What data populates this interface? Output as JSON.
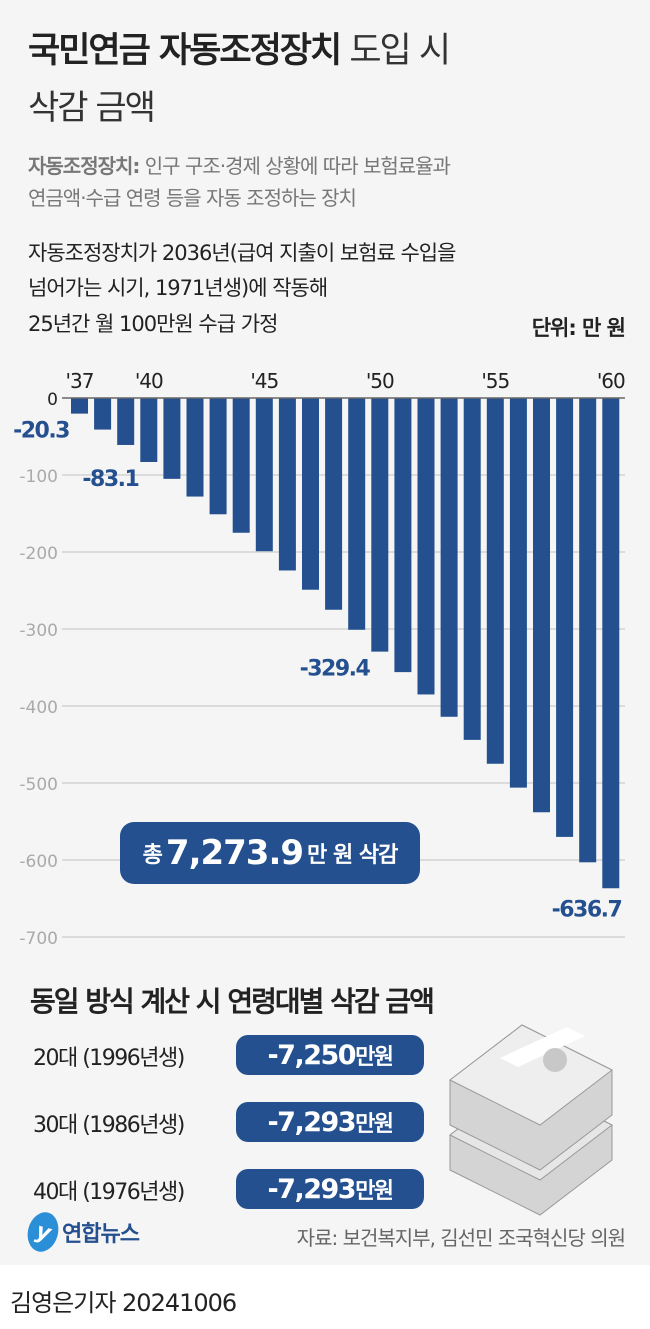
{
  "header": {
    "title_bold": "국민연금 자동조정장치",
    "title_light": "도입 시",
    "title_line2": "삭감 금액"
  },
  "definition": {
    "term": "자동조정장치:",
    "line1": "인구 구조·경제 상황에 따라 보험료율과",
    "line2": "연금액·수급 연령 등을 자동 조정하는 장치"
  },
  "assumption": {
    "line1": "자동조정장치가 2036년(급여 지출이 보험료 수입을",
    "line2": "넘어가는 시기, 1971년생)에 작동해",
    "line3": "25년간 월 100만원 수급 가정"
  },
  "unit": "단위: 만 원",
  "total": {
    "prefix": "총",
    "value": "7,273.9",
    "suffix": "만 원 삭감"
  },
  "chart_data": {
    "type": "bar",
    "categories": [
      "'37",
      "'38",
      "'39",
      "'40",
      "'41",
      "'42",
      "'43",
      "'44",
      "'45",
      "'46",
      "'47",
      "'48",
      "'49",
      "'50",
      "'51",
      "'52",
      "'53",
      "'54",
      "'55",
      "'56",
      "'57",
      "'58",
      "'59",
      "'60"
    ],
    "values": [
      -20.3,
      -41,
      -61,
      -83.1,
      -105,
      -128,
      -151,
      -175,
      -199,
      -224,
      -249,
      -275,
      -301,
      -329.4,
      -356,
      -385,
      -414,
      -444,
      -475,
      -506,
      -538,
      -570,
      -603,
      -636.7
    ],
    "x_tick_labels": {
      "0": "'37",
      "3": "'40",
      "8": "'45",
      "13": "'50",
      "18": "'55",
      "23": "'60"
    },
    "data_labels": {
      "0": "-20.3",
      "3": "-83.1",
      "13": "-329.4",
      "23": "-636.7"
    },
    "yticks": [
      0,
      -100,
      -200,
      -300,
      -400,
      -500,
      -600,
      -700
    ],
    "ytick_labels": [
      "0",
      "-100",
      "-200",
      "-300",
      "-400",
      "-500",
      "-600",
      "-700"
    ],
    "ylim": [
      -700,
      0
    ],
    "grid": true,
    "bar_color": "#24508f"
  },
  "age_section": {
    "title": "동일 방식 계산 시 연령대별 삭감 금액",
    "rows": [
      {
        "label": "20대 (1996년생)",
        "value": "-7,250",
        "unit": "만원"
      },
      {
        "label": "30대 (1986년생)",
        "value": "-7,293",
        "unit": "만원"
      },
      {
        "label": "40대 (1976년생)",
        "value": "-7,293",
        "unit": "만원"
      }
    ]
  },
  "footer": {
    "logo": "연합뉴스",
    "source": "자료: 보건복지부, 김선민 조국혁신당 의원",
    "byline": "김영은기자  20241006"
  }
}
